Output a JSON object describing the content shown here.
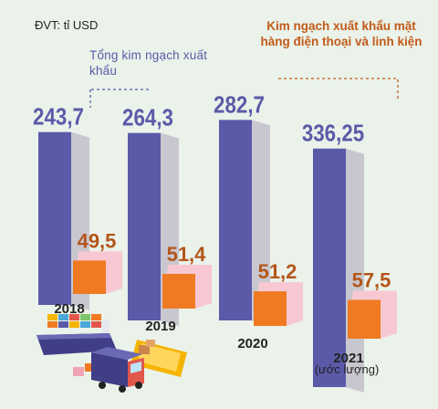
{
  "unit_label": "ĐVT: tỉ USD",
  "annotation_total": "Tổng kim ngạch xuất khẩu",
  "annotation_phone": "Kim ngạch xuất khẩu mặt hàng điện thoại và linh kiện",
  "year_note": "(ước lượng)",
  "colors": {
    "total_front": "#5b5aa8",
    "total_side": "#c8c7cf",
    "phone_front": "#f07a22",
    "phone_side": "#f7c8d2",
    "total_label": "#5b5aa8",
    "phone_label": "#b4561a",
    "background": "#eaf2ea"
  },
  "chart_data": {
    "type": "bar",
    "categories": [
      "2018",
      "2019",
      "2020",
      "2021"
    ],
    "series": [
      {
        "values": [
          243.7,
          264.3,
          282.7,
          336.25
        ]
      },
      {
        "values": [
          49.5,
          51.4,
          51.2,
          57.5
        ]
      }
    ],
    "value_labels": [
      [
        "243,7",
        "264,3",
        "282,7",
        "336,25"
      ],
      [
        "49,5",
        "51,4",
        "51,2",
        "57,5"
      ]
    ],
    "illustration": "container-ship-and-truck-icon"
  }
}
